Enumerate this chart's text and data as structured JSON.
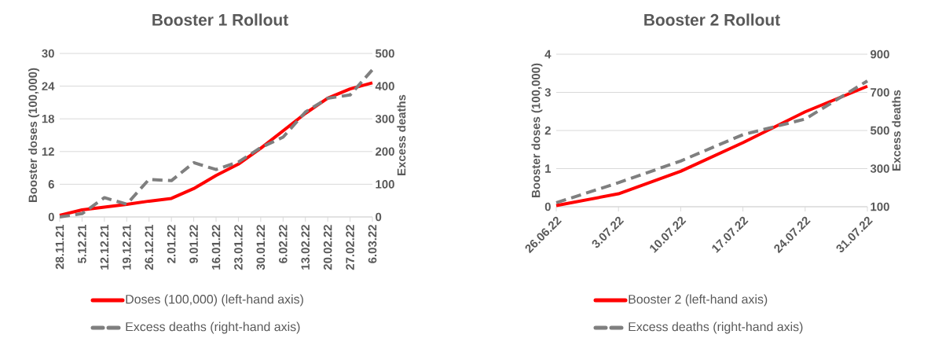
{
  "chart_data": [
    {
      "type": "line",
      "title": "Booster 1 Rollout",
      "ylabel": "Booster doses (100,000)",
      "y2label": "Excess deaths",
      "categories": [
        "28.11.21",
        "5.12.21",
        "12.12.21",
        "19.12.21",
        "26.12.21",
        "2.01.22",
        "9.01.22",
        "16.01.22",
        "23.01.22",
        "30.01.22",
        "6.02.22",
        "13.02.22",
        "20.02.22",
        "27.02.22",
        "6.03.22"
      ],
      "series": [
        {
          "name": "Doses (100,000) (left-hand axis)",
          "color": "#ff0000",
          "line_style": "solid",
          "values": [
            0.3,
            1.3,
            1.8,
            2.3,
            2.9,
            3.4,
            5.2,
            7.6,
            9.7,
            12.6,
            15.8,
            19.0,
            21.8,
            23.5,
            24.6
          ]
        },
        {
          "name": "Excess deaths (right-hand axis)",
          "color": "#7f7f7f",
          "line_style": "dashed",
          "axis": "y2",
          "values": [
            0,
            10,
            59,
            39,
            115,
            111,
            166,
            145,
            168,
            212,
            244,
            321,
            363,
            373,
            450
          ]
        }
      ],
      "ylim": [
        0,
        30
      ],
      "yticks": [
        0,
        6,
        12,
        18,
        24,
        30
      ],
      "y2lim": [
        0,
        500
      ],
      "y2ticks": [
        0,
        100,
        200,
        300,
        400,
        500
      ],
      "grid": "y",
      "legend": "bottom"
    },
    {
      "type": "line",
      "title": "Booster 2 Rollout",
      "ylabel": "Booster doses (100,000)",
      "y2label": "Excess deaths",
      "categories": [
        "26.06.22",
        "3.07.22",
        "10.07.22",
        "17.07.22",
        "24.07.22",
        "31.07.22"
      ],
      "series": [
        {
          "name": "Booster 2 (left-hand axis)",
          "color": "#ff0000",
          "line_style": "solid",
          "values": [
            0.03,
            0.34,
            0.93,
            1.68,
            2.49,
            3.16
          ]
        },
        {
          "name": "Excess deaths (right-hand axis)",
          "color": "#7f7f7f",
          "line_style": "dashed",
          "axis": "y2",
          "values": [
            121,
            226,
            340,
            478,
            560,
            760
          ]
        }
      ],
      "ylim": [
        0,
        4
      ],
      "yticks": [
        0,
        1,
        2,
        3,
        4
      ],
      "y2lim": [
        100,
        900
      ],
      "y2ticks": [
        100,
        300,
        500,
        700,
        900
      ],
      "grid": "y",
      "legend": "bottom"
    }
  ]
}
